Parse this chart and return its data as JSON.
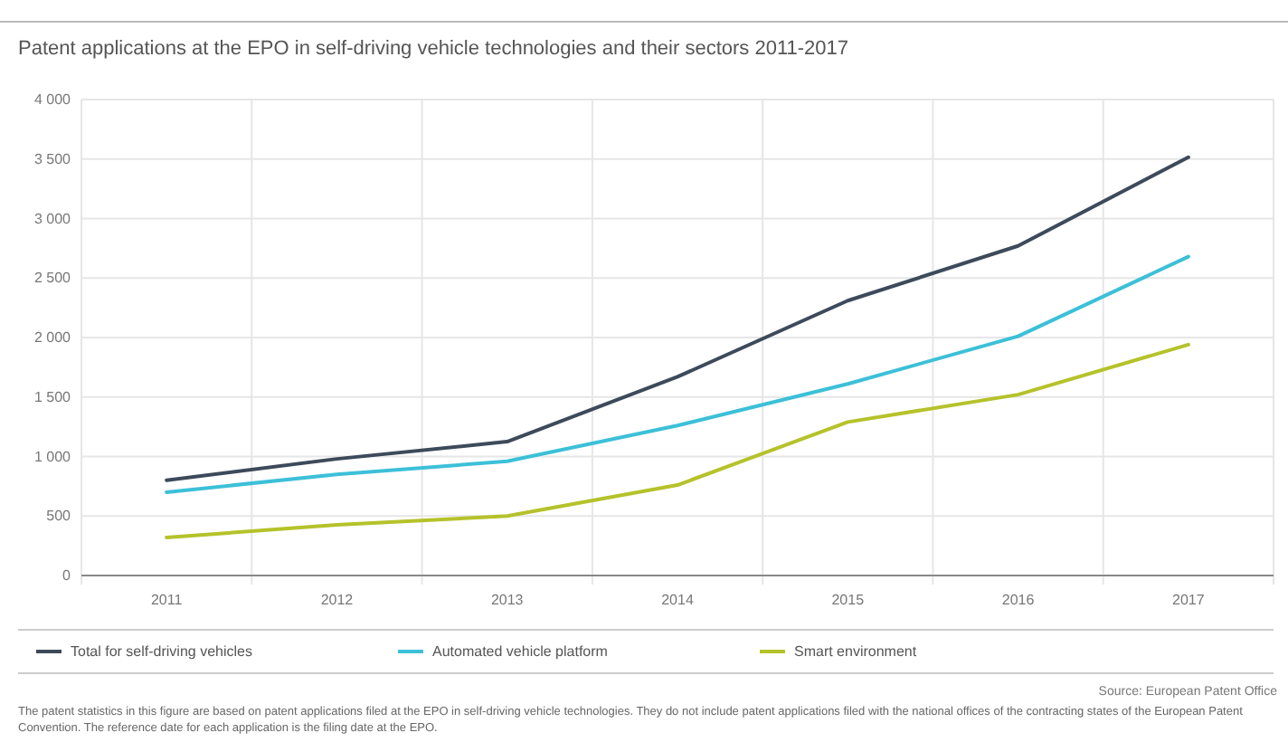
{
  "chart_data": {
    "type": "line",
    "title": "Patent applications at the EPO in self-driving vehicle technologies and their sectors 2011-2017",
    "categories": [
      "2011",
      "2012",
      "2013",
      "2014",
      "2015",
      "2016",
      "2017"
    ],
    "series": [
      {
        "name": "Total for self-driving vehicles",
        "color": "#3d4a5a",
        "values": [
          800,
          980,
          1125,
          1670,
          2310,
          2770,
          3515
        ]
      },
      {
        "name": "Automated vehicle platform",
        "color": "#3cc0d8",
        "values": [
          700,
          850,
          960,
          1260,
          1610,
          2010,
          2680
        ]
      },
      {
        "name": "Smart environment",
        "color": "#b5c22a",
        "values": [
          320,
          425,
          500,
          760,
          1290,
          1520,
          1940
        ]
      }
    ],
    "ylim": [
      0,
      4000
    ],
    "yticks": [
      {
        "value": 0,
        "label": "0"
      },
      {
        "value": 500,
        "label": "500"
      },
      {
        "value": 1000,
        "label": "1 000"
      },
      {
        "value": 1500,
        "label": "1 500"
      },
      {
        "value": 2000,
        "label": "2 000"
      },
      {
        "value": 2500,
        "label": "2 500"
      },
      {
        "value": 3000,
        "label": "3 000"
      },
      {
        "value": 3500,
        "label": "3 500"
      },
      {
        "value": 4000,
        "label": "4 000"
      }
    ],
    "grid": true,
    "legend": "bottom",
    "line_style": "solid",
    "marker": "none",
    "annotations": [
      "Source: European Patent Office",
      "The patent statistics in this figure are based on patent applications filed at the EPO in self-driving vehicle technologies. They do not include patent applications filed with the national offices of the contracting states of the European Patent Convention. The reference date for each application is the filing date at the EPO."
    ]
  }
}
